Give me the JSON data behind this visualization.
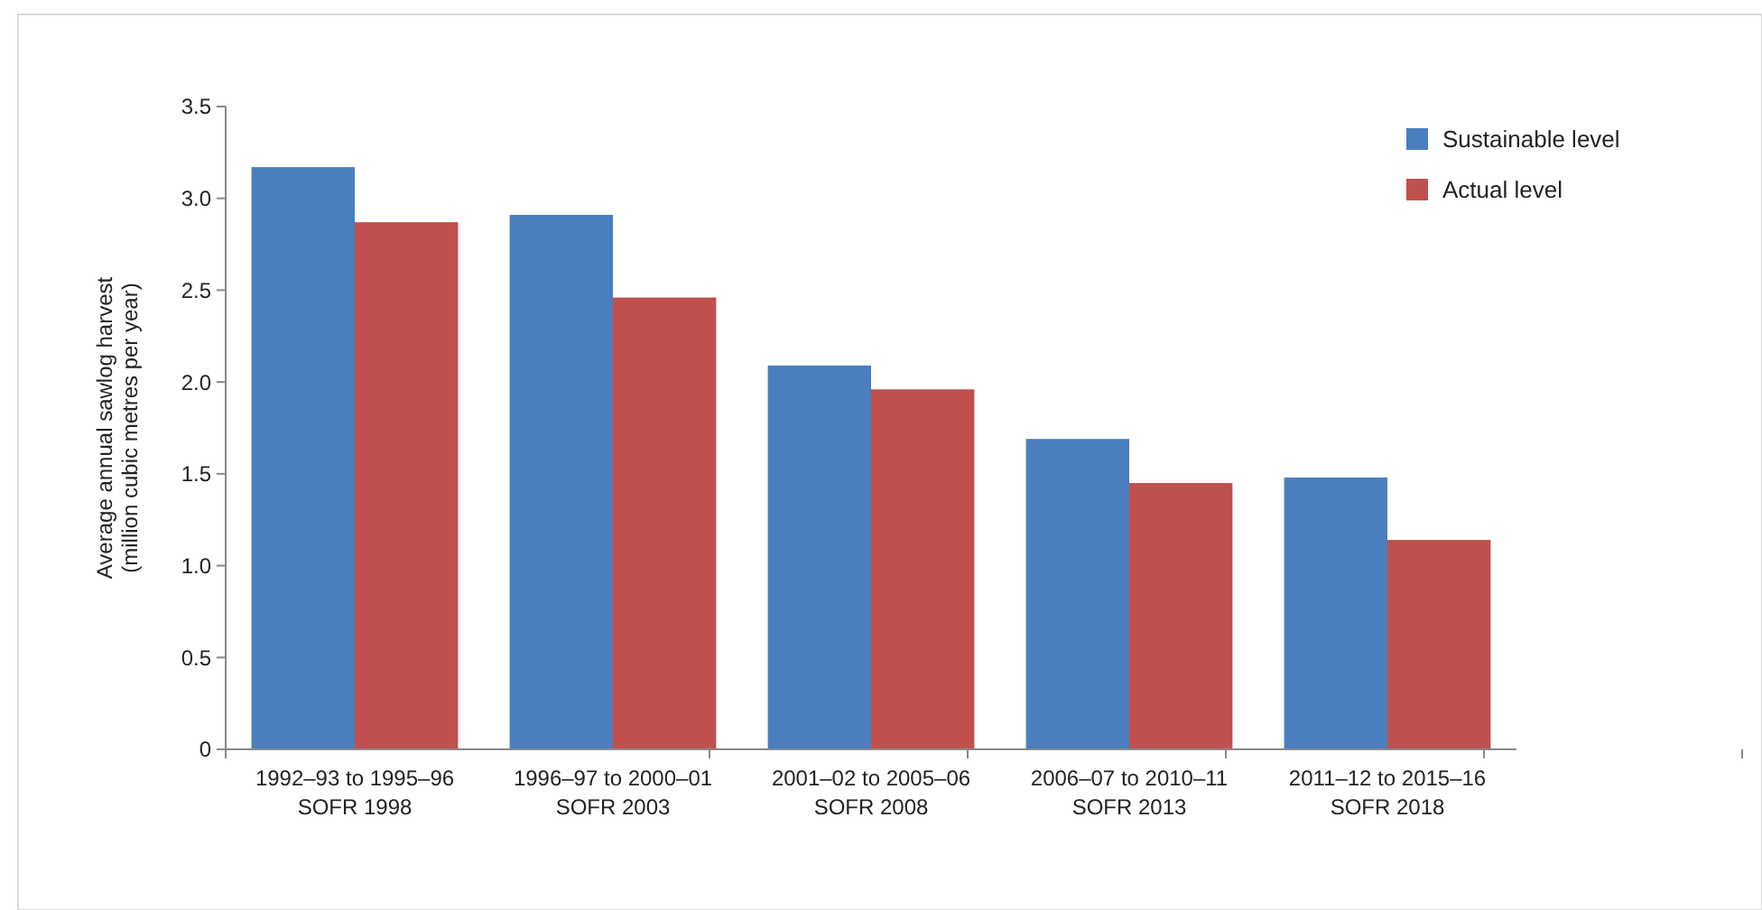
{
  "chart_data": {
    "type": "bar",
    "ylabel": "Average annual sawlog harvest\n(million cubic metres per year)",
    "categories": [
      "1992–93 to 1995–96\nSOFR 1998",
      "1996–97 to 2000–01\nSOFR 2003",
      "2001–02 to 2005–06\nSOFR 2008",
      "2006–07 to 2010–11\nSOFR 2013",
      "2011–12 to 2015–16\nSOFR 2018"
    ],
    "series": [
      {
        "name": "Sustainable level",
        "color": "#4a7ebf",
        "values": [
          3.17,
          2.91,
          2.09,
          1.69,
          1.48
        ]
      },
      {
        "name": "Actual level",
        "color": "#c0504d",
        "values": [
          2.87,
          2.46,
          1.96,
          1.45,
          1.14
        ]
      }
    ],
    "ylim": [
      0,
      3.5
    ],
    "yticks": [
      "0",
      {
        "value": 0.5,
        "label": "0.5"
      },
      {
        "value": 1,
        "label": "1.0"
      },
      {
        "value": 1.5,
        "label": "1.5"
      },
      {
        "value": 2,
        "label": "2.0"
      },
      {
        "value": 2.5,
        "label": "2.5"
      },
      {
        "value": 3,
        "label": "3.0"
      },
      {
        "value": 3.5,
        "label": "3.5"
      }
    ],
    "grid": false,
    "legend": "top right"
  }
}
